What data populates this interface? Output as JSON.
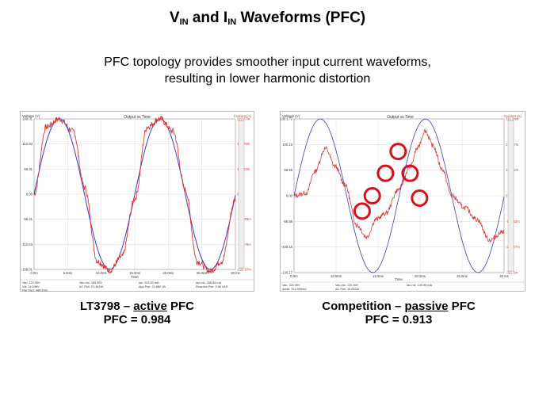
{
  "slide": {
    "title_v": "V",
    "title_v_sub": "IN",
    "title_and": " and ",
    "title_i": "I",
    "title_i_sub": "IN",
    "title_rest": " Waveforms (PFC)",
    "subtitle_line1": "PFC topology provides smoother input current waveforms,",
    "subtitle_line2": "resulting in lower harmonic distortion"
  },
  "left": {
    "caption_pre": "LT3798 – ",
    "caption_emph": "active",
    "caption_post": " PFC",
    "pfc_line": "PFC = 0.984",
    "plot_title": "Output vs Time",
    "y_left_label": "Voltage (V)",
    "y_right_label": "Current (A)",
    "x_label": "Time",
    "y_ticks_left": [
      "168.01",
      "112.63",
      "56.31",
      "0.00",
      "-56.31",
      "-112.63",
      "-168.01"
    ],
    "y_ticks_right": [
      "222.67m",
      "181.76m",
      "145.83m",
      "0.00",
      "-145.83m",
      "-181.76m",
      "-222.67m"
    ],
    "x_ticks": [
      "0.0m",
      "5.0ms",
      "10.0ms",
      "15.0ms",
      "20.0ms",
      "25.0ms",
      "30 ms"
    ],
    "footer": [
      [
        "Vac: 120.05V",
        "Vac-rdc: 165.95V",
        "Iac: 203.53 mA",
        "Iac-rdc: 285.56 mA"
      ],
      [
        "Vol: 14.248V",
        "AC Pwr: 21.462W",
        "App Pwr: 21.882 VA",
        "Reactive Pwr: 3.96 VAR"
      ],
      [
        "Pwr Fact: 984.83m",
        "",
        "",
        ""
      ]
    ]
  },
  "right": {
    "caption_pre": "Competition – ",
    "caption_emph": "passive",
    "caption_post": " PFC",
    "pfc_line": "PFC = 0.913",
    "plot_title": "Output vs Time",
    "y_left_label": "Voltage (V)",
    "y_right_label": "Current (A)",
    "x_label": "Time",
    "y_ticks_left": [
      "130.17V",
      "100.18",
      "56.56",
      "0.00",
      "-56.56",
      "-100.18",
      "-130.17"
    ],
    "y_ticks_right": [
      "321.5ma",
      "218.27m",
      "145.52m",
      "0.00",
      "-145.52m",
      "-218.27m",
      "-321.5m"
    ],
    "x_ticks": [
      "0.0m",
      "10.0ms",
      "15.0ms",
      "20.0ms",
      "25.0ms",
      "30 ms"
    ],
    "footer": [
      [
        "Vac: 120.06V",
        "Vac-rdc: 120.06V",
        "Iac-rdc: 120.99 mA"
      ],
      [
        "Ipeak: 311.956mA",
        "AC Pwr: 15.062W",
        "",
        ""
      ],
      [
        "",
        "Pwr Fact: 912.90m",
        "",
        ""
      ]
    ]
  },
  "colors": {
    "voltage": "#3b3bd6",
    "current": "#e03232",
    "highlight": "#d8101a"
  },
  "chart_data": [
    {
      "type": "line",
      "title": "Output vs Time",
      "xlabel": "Time",
      "ylabel": "Voltage (V)",
      "y2label": "Current (A)",
      "xlim": [
        0,
        33.3
      ],
      "ylim": [
        -168.01,
        168.01
      ],
      "series": [
        {
          "name": "Voltage",
          "x": [
            0,
            4.17,
            8.33,
            12.5,
            16.67,
            20.83,
            25,
            29.17,
            33.33
          ],
          "values": [
            0,
            168,
            0,
            -168,
            0,
            168,
            0,
            -168,
            0
          ]
        },
        {
          "name": "Current",
          "x": [
            0,
            2,
            4.17,
            6.5,
            8.33,
            10.5,
            12.5,
            14.5,
            16.67,
            18.7,
            20.83,
            23,
            25,
            27,
            29.17,
            31,
            33.33
          ],
          "values": [
            0,
            150,
            168,
            140,
            15,
            -150,
            -170,
            -140,
            -10,
            150,
            168,
            140,
            10,
            -150,
            -172,
            -150,
            -10
          ]
        }
      ]
    },
    {
      "type": "line",
      "title": "Output vs Time",
      "xlabel": "Time",
      "ylabel": "Voltage (V)",
      "y2label": "Current (A)",
      "xlim": [
        0,
        33.3
      ],
      "ylim": [
        -130.17,
        130.17
      ],
      "series": [
        {
          "name": "Voltage",
          "x": [
            0,
            4.17,
            8.33,
            12.5,
            16.67,
            20.83,
            25,
            29.17,
            33.33
          ],
          "values": [
            0,
            130,
            0,
            -130,
            0,
            130,
            0,
            -130,
            0
          ]
        },
        {
          "name": "Current",
          "x": [
            0,
            2,
            3.2,
            5,
            6.5,
            8,
            10,
            11.5,
            13,
            14.5,
            16.5,
            18.5,
            19.5,
            20.8,
            22,
            23.5,
            25,
            27,
            29,
            31,
            33.3
          ],
          "values": [
            0,
            5,
            40,
            80,
            50,
            20,
            -50,
            -70,
            -40,
            -30,
            10,
            50,
            80,
            110,
            85,
            45,
            0,
            -20,
            -40,
            -75,
            -60
          ]
        }
      ],
      "annotations": "Six red circles highlighting current steps"
    }
  ]
}
